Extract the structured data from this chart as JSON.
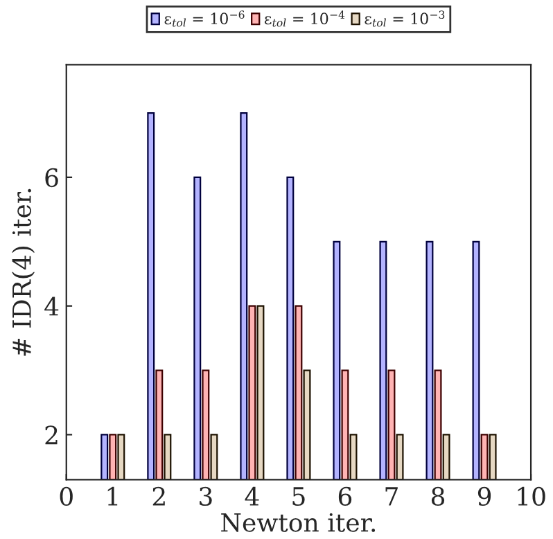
{
  "chart_data": {
    "type": "bar",
    "xlabel": "Newton iter.",
    "ylabel": "# IDR(4) iter.",
    "x": [
      1,
      2,
      3,
      4,
      5,
      6,
      7,
      8,
      9
    ],
    "series": [
      {
        "name": "ε$_{tol}$ = 10$^{−6}$",
        "color": "#b3b3ff",
        "values": [
          2,
          7,
          6,
          7,
          6,
          5,
          5,
          5,
          5
        ]
      },
      {
        "name": "ε$_{tol}$ = 10$^{−4}$",
        "color": "#ffb3b3",
        "values": [
          2,
          3,
          3,
          4,
          4,
          3,
          3,
          3,
          2
        ]
      },
      {
        "name": "ε$_{tol}$ = 10$^{−3}$",
        "color": "#e6d8c3",
        "values": [
          2,
          2,
          2,
          4,
          3,
          2,
          2,
          2,
          2
        ]
      }
    ],
    "xlim": [
      0,
      10
    ],
    "xticks": [
      0,
      1,
      2,
      3,
      4,
      5,
      6,
      7,
      8,
      9,
      10
    ],
    "ylim": [
      1.3,
      7.75
    ],
    "yticks": [
      2,
      4,
      6
    ],
    "legend": "top",
    "grid": false
  }
}
